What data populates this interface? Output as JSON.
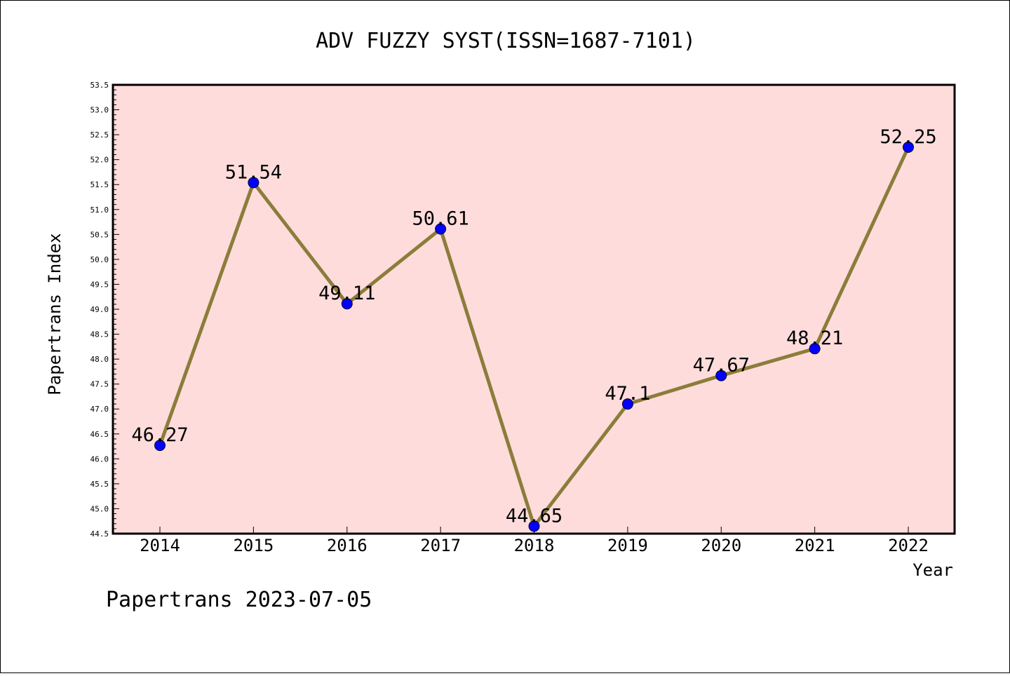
{
  "chart_data": {
    "type": "line",
    "title": "ADV FUZZY SYST(ISSN=1687-7101)",
    "xlabel": "Year",
    "ylabel": "Papertrans Index",
    "categories": [
      "2014",
      "2015",
      "2016",
      "2017",
      "2018",
      "2019",
      "2020",
      "2021",
      "2022"
    ],
    "values": [
      46.27,
      51.54,
      49.11,
      50.61,
      44.65,
      47.1,
      47.67,
      48.21,
      52.25
    ],
    "data_labels": [
      "46.27",
      "51.54",
      "49.11",
      "50.61",
      "44.65",
      "47.1",
      "47.67",
      "48.21",
      "52.25"
    ],
    "ylim": [
      44.5,
      53.5
    ],
    "yticks": [
      "44.5",
      "45.0",
      "45.5",
      "46.0",
      "46.5",
      "47.0",
      "47.5",
      "48.0",
      "48.5",
      "49.0",
      "49.5",
      "50.0",
      "50.5",
      "51.0",
      "51.5",
      "52.0",
      "52.5",
      "53.0",
      "53.5"
    ],
    "grid": false,
    "legend": "none",
    "colors": {
      "plot_background": "#ffdcdc",
      "line": "#8b7d3a",
      "marker": "#0000ff",
      "frame": "#000000"
    }
  },
  "footer": "Papertrans 2023-07-05"
}
